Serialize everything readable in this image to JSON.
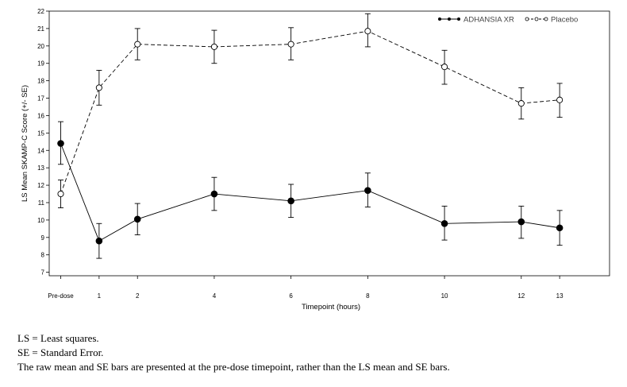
{
  "chart_data": {
    "type": "line",
    "xlabel": "Timepoint (hours)",
    "ylabel": "LS Mean SKAMP-C Score (+/- SE)",
    "categories": [
      "Pre-dose",
      "1",
      "2",
      "4",
      "6",
      "8",
      "10",
      "12",
      "13"
    ],
    "x": [
      0,
      1,
      2,
      4,
      6,
      8,
      10,
      12,
      13
    ],
    "xlim": [
      -0.3,
      14.3
    ],
    "ylim": [
      6.8,
      22
    ],
    "yticks": [
      7,
      8,
      9,
      10,
      11,
      12,
      13,
      14,
      15,
      16,
      17,
      18,
      19,
      20,
      21,
      22
    ],
    "legend": "top-right",
    "grid": false,
    "series": [
      {
        "name": "ADHANSIA XR",
        "style": "solid",
        "marker": "filled-circle",
        "color": "#000000",
        "values": [
          14.4,
          8.8,
          10.05,
          11.5,
          11.1,
          11.7,
          9.8,
          9.9,
          9.55
        ],
        "lower": [
          13.2,
          7.8,
          9.15,
          10.55,
          10.15,
          10.75,
          8.85,
          8.95,
          8.55
        ],
        "upper": [
          15.65,
          9.8,
          10.95,
          12.45,
          12.05,
          12.7,
          10.8,
          10.8,
          10.55
        ]
      },
      {
        "name": "Placebo",
        "style": "dashed",
        "marker": "open-circle",
        "color": "#000000",
        "values": [
          11.5,
          17.6,
          20.1,
          19.95,
          20.1,
          20.85,
          18.8,
          16.7,
          16.9
        ],
        "lower": [
          10.7,
          16.6,
          19.2,
          19.0,
          19.2,
          19.95,
          17.8,
          15.8,
          15.9
        ],
        "upper": [
          12.3,
          18.6,
          21.0,
          20.9,
          21.05,
          21.85,
          19.75,
          17.6,
          17.85
        ]
      }
    ]
  },
  "footnotes": [
    "LS = Least squares.",
    "SE = Standard Error.",
    "The raw mean and SE bars are presented at the pre-dose timepoint, rather than the LS mean and SE bars."
  ]
}
